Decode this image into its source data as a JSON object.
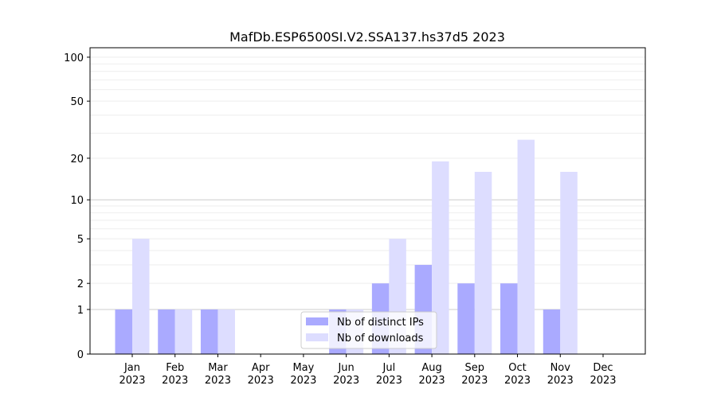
{
  "chart_data": {
    "type": "bar",
    "title": "MafDb.ESP6500SI.V2.SSA137.hs37d5 2023",
    "xlabel": "",
    "ylabel": "",
    "yscale": "symlog",
    "ylim": [
      0,
      116
    ],
    "yticks": [
      0,
      1,
      2,
      5,
      10,
      20,
      50,
      100
    ],
    "grid": true,
    "legend_position": "bottom-center",
    "categories": [
      "Jan\n2023",
      "Feb\n2023",
      "Mar\n2023",
      "Apr\n2023",
      "May\n2023",
      "Jun\n2023",
      "Jul\n2023",
      "Aug\n2023",
      "Sep\n2023",
      "Oct\n2023",
      "Nov\n2023",
      "Dec\n2023"
    ],
    "series": [
      {
        "name": "Nb of distinct IPs",
        "color": "#aaaaff",
        "values": [
          1,
          1,
          1,
          0,
          0,
          1,
          2,
          3,
          2,
          2,
          1,
          0
        ]
      },
      {
        "name": "Nb of downloads",
        "color": "#ddddff",
        "values": [
          5,
          1,
          1,
          0,
          0,
          1,
          5,
          19,
          16,
          27,
          16,
          0
        ]
      }
    ]
  }
}
